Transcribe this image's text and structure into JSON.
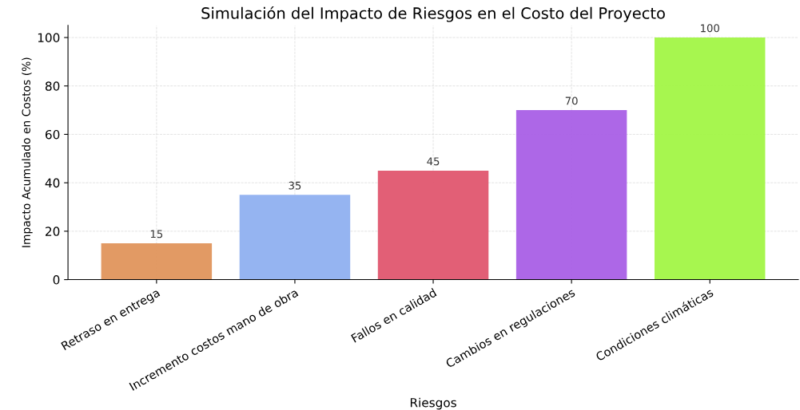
{
  "chart_data": {
    "type": "bar",
    "title": "Simulación del Impacto de Riesgos en el Costo del Proyecto",
    "xlabel": "Riesgos",
    "ylabel": "Impacto Acumulado en Costos (%)",
    "categories": [
      "Retraso en entrega",
      "Incremento costos mano de obra",
      "Fallos en calidad",
      "Cambios en regulaciones",
      "Condiciones climáticas"
    ],
    "values": [
      15,
      35,
      45,
      70,
      100
    ],
    "colors": [
      "#e0955c",
      "#8fb0f0",
      "#e0566f",
      "#a95fe6",
      "#a2f546"
    ],
    "ylim": [
      0,
      105
    ],
    "yticks": [
      0,
      20,
      40,
      60,
      80,
      100
    ],
    "grid": true,
    "data_labels": true
  }
}
